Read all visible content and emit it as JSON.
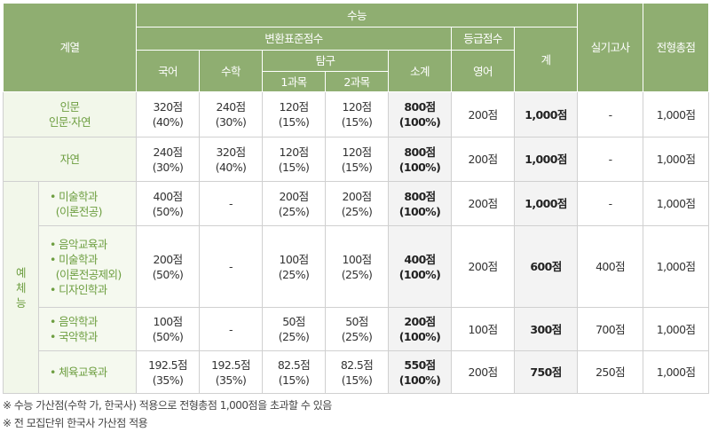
{
  "header": {
    "gyeyeol": "계열",
    "suneung": "수능",
    "byeonhwan": "변환표준점수",
    "deunggeup": "등급점수",
    "gye": "계",
    "silgi": "실기고사",
    "jeonhyeong": "전형총점",
    "gugeo": "국어",
    "suhak": "수학",
    "tamgu": "탐구",
    "sogye": "소계",
    "yeongeo": "영어",
    "gwamok1": "1과목",
    "gwamok2": "2과목"
  },
  "rows": [
    {
      "label_lines": [
        "인문",
        "인문·자연"
      ],
      "gugeo": [
        "320점",
        "(40%)"
      ],
      "suhak": [
        "240점",
        "(30%)"
      ],
      "t1": [
        "120점",
        "(15%)"
      ],
      "t2": [
        "120점",
        "(15%)"
      ],
      "sogye": [
        "800점",
        "(100%)"
      ],
      "yeongeo": "200점",
      "gye": "1,000점",
      "silgi": "-",
      "total": "1,000점"
    },
    {
      "label_lines": [
        "자연"
      ],
      "gugeo": [
        "240점",
        "(30%)"
      ],
      "suhak": [
        "320점",
        "(40%)"
      ],
      "t1": [
        "120점",
        "(15%)"
      ],
      "t2": [
        "120점",
        "(15%)"
      ],
      "sogye": [
        "800점",
        "(100%)"
      ],
      "yeongeo": "200점",
      "gye": "1,000점",
      "silgi": "-",
      "total": "1,000점"
    }
  ],
  "yechneung": {
    "label_chars": [
      "예",
      "체",
      "능"
    ],
    "rows": [
      {
        "label_lines": [
          "• 미술학과",
          "  (이론전공)"
        ],
        "gugeo": [
          "400점",
          "(50%)"
        ],
        "suhak": [
          "-"
        ],
        "t1": [
          "200점",
          "(25%)"
        ],
        "t2": [
          "200점",
          "(25%)"
        ],
        "sogye": [
          "800점",
          "(100%)"
        ],
        "yeongeo": "200점",
        "gye": "1,000점",
        "silgi": "-",
        "total": "1,000점"
      },
      {
        "label_lines": [
          "• 음악교육과",
          "• 미술학과",
          "  (이론전공제외)",
          "• 디자인학과"
        ],
        "gugeo": [
          "200점",
          "(50%)"
        ],
        "suhak": [
          "-"
        ],
        "t1": [
          "100점",
          "(25%)"
        ],
        "t2": [
          "100점",
          "(25%)"
        ],
        "sogye": [
          "400점",
          "(100%)"
        ],
        "yeongeo": "200점",
        "gye": "600점",
        "silgi": "400점",
        "total": "1,000점"
      },
      {
        "label_lines": [
          "• 음악학과",
          "• 국악학과"
        ],
        "gugeo": [
          "100점",
          "(50%)"
        ],
        "suhak": [
          "-"
        ],
        "t1": [
          "50점",
          "(25%)"
        ],
        "t2": [
          "50점",
          "(25%)"
        ],
        "sogye": [
          "200점",
          "(100%)"
        ],
        "yeongeo": "100점",
        "gye": "300점",
        "silgi": "700점",
        "total": "1,000점"
      },
      {
        "label_lines": [
          "• 체육교육과"
        ],
        "gugeo": [
          "192.5점",
          "(35%)"
        ],
        "suhak": [
          "192.5점",
          "(35%)"
        ],
        "t1": [
          "82.5점",
          "(15%)"
        ],
        "t2": [
          "82.5점",
          "(15%)"
        ],
        "sogye": [
          "550점",
          "(100%)"
        ],
        "yeongeo": "200점",
        "gye": "750점",
        "silgi": "250점",
        "total": "1,000점"
      }
    ]
  },
  "notes": [
    "※ 수능 가산점(수학 가, 한국사) 적용으로 전형총점 1,000점을 초과할 수 있음",
    "※ 전 모집단위 한국사 가산점 적용"
  ]
}
